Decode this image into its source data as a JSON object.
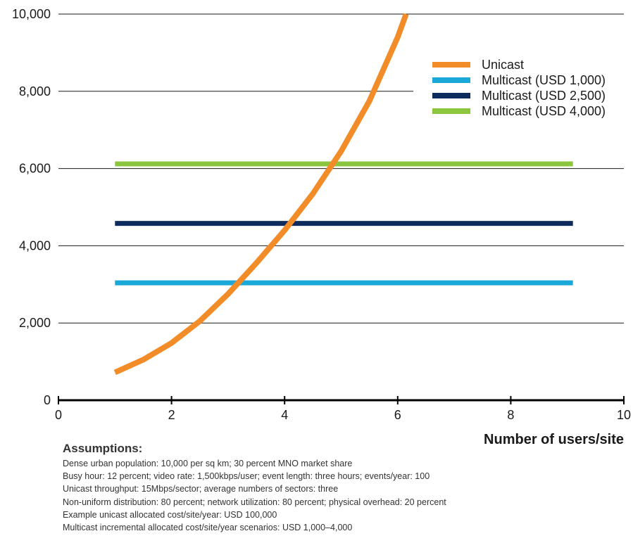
{
  "chart_data": {
    "type": "line",
    "xlabel": "Number of users/site",
    "ylabel": "",
    "xlim": [
      0,
      10
    ],
    "ylim": [
      0,
      10000
    ],
    "x_ticks": [
      0,
      2,
      4,
      6,
      8,
      10
    ],
    "y_ticks": [
      0,
      2000,
      4000,
      6000,
      8000,
      10000
    ],
    "x_tick_labels": [
      "0",
      "2",
      "4",
      "6",
      "8",
      "10"
    ],
    "y_tick_labels": [
      "0",
      "2,000",
      "4,000",
      "6,000",
      "8,000",
      "10,000"
    ],
    "grid": "horizontal",
    "legend_position": "top-right",
    "series": [
      {
        "name": "Unicast",
        "color": "#f28c28",
        "x": [
          1.0,
          1.5,
          2.0,
          2.5,
          3.0,
          3.5,
          4.0,
          4.5,
          5.0,
          5.5,
          6.0,
          6.15
        ],
        "y": [
          720,
          1050,
          1480,
          2050,
          2750,
          3550,
          4400,
          5350,
          6450,
          7750,
          9400,
          10000
        ]
      },
      {
        "name": "Multicast (USD 1,000)",
        "color": "#1aa8d8",
        "x": [
          1,
          9.1
        ],
        "y": [
          3040,
          3040
        ]
      },
      {
        "name": "Multicast (USD 2,500)",
        "color": "#0d2b5c",
        "x": [
          1,
          9.1
        ],
        "y": [
          4580,
          4580
        ]
      },
      {
        "name": "Multicast (USD 4,000)",
        "color": "#8cc63f",
        "x": [
          1,
          9.1
        ],
        "y": [
          6120,
          6120
        ]
      }
    ]
  },
  "notes": {
    "title": "Assumptions:",
    "lines": [
      "Dense urban population: 10,000 per sq km; 30 percent MNO market share",
      "Busy hour: 12 percent; video rate: 1,500kbps/user; event length: three hours; events/year: 100",
      "Unicast throughput: 15Mbps/sector; average numbers of sectors: three",
      "Non-uniform distribution: 80 percent; network utilization: 80 percent; physical overhead: 20 percent",
      "Example unicast allocated cost/site/year: USD 100,000",
      "Multicast incremental allocated cost/site/year scenarios: USD 1,000–4,000"
    ]
  }
}
